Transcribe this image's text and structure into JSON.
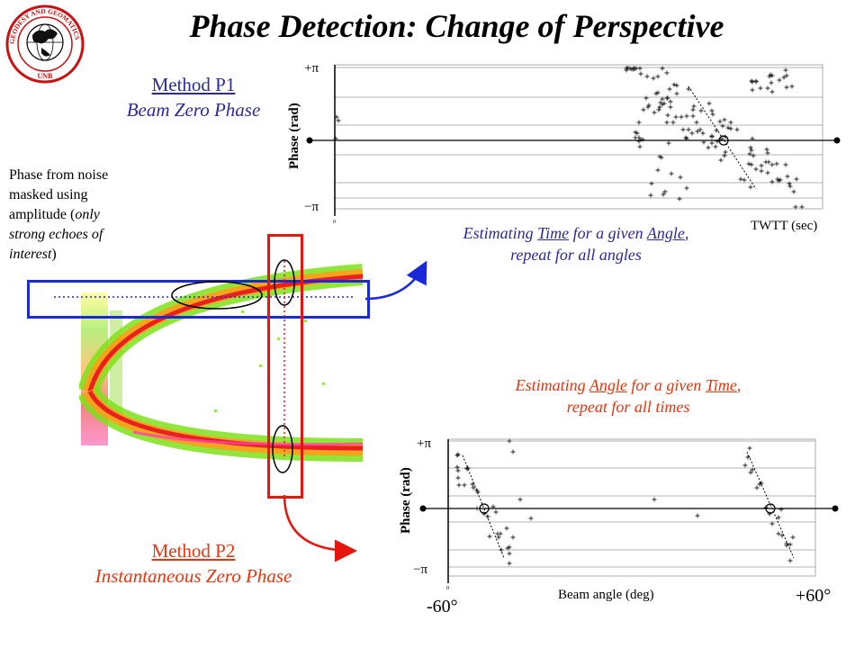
{
  "title": "Phase Detection: Change of Perspective",
  "logo": {
    "text": "GEODESY AND GEOMATICS ENGINEERING",
    "sub": "UNB"
  },
  "method_p1": {
    "title": "Method P1",
    "subtitle": "Beam Zero Phase",
    "color": "#2a2a9c"
  },
  "method_p2": {
    "title": "Method P2",
    "subtitle": "Instantaneous Zero Phase",
    "color": "#e8350e"
  },
  "note": {
    "line1": "Phase from noise masked using amplitude (",
    "italic": "only strong echoes of interest",
    "end": ")"
  },
  "caption_p1": {
    "part1": "Estimating ",
    "key1": "Time",
    "part2": " for a given ",
    "key2": "Angle",
    "part3": ",",
    "line2": "repeat for all angles"
  },
  "caption_p2": {
    "part1": "Estimating ",
    "key1": "Angle",
    "part2": " for a given ",
    "key2": "Time",
    "part3": ",",
    "line2": "repeat for all times"
  },
  "plot_p1": {
    "ylabel": "Phase (rad)",
    "xlabel": "TWTT (sec)",
    "ytick_top": "+π",
    "ytick_bottom": "−π",
    "x_origin": "0"
  },
  "plot_p2": {
    "ylabel": "Phase (rad)",
    "xlabel": "Beam angle (deg)",
    "ytick_top": "+π",
    "ytick_bottom": "−π",
    "x_left": "-60°",
    "x_right": "+60°",
    "x_origin": "0"
  },
  "colors": {
    "blue_box": "#1a2ad8",
    "red_box": "#e8150e",
    "arrow_blue": "#1a2ad8",
    "arrow_red": "#e8150e"
  }
}
